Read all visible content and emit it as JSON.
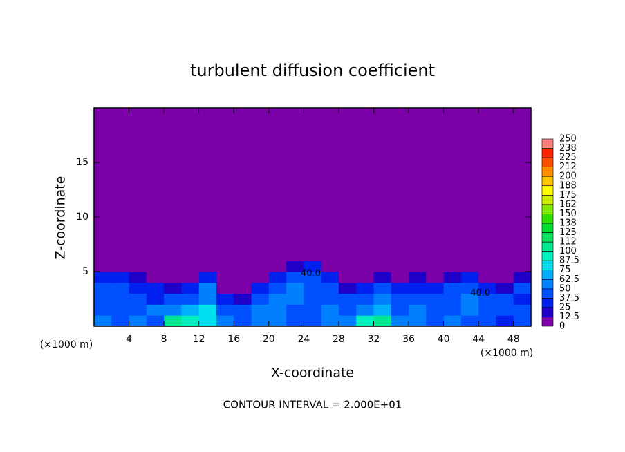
{
  "chart_data": {
    "type": "contour",
    "title": "turbulent diffusion coefficient",
    "x_label": "X-coordinate",
    "y_label": "Z-coordinate",
    "x_unit": "(×1000 m)",
    "y_unit": "(×1000 m)",
    "footnote": "CONTOUR INTERVAL = 2.000E+01",
    "xlim": [
      0,
      50
    ],
    "ylim": [
      0,
      20
    ],
    "xticks": [
      4,
      8,
      12,
      16,
      20,
      24,
      28,
      32,
      36,
      40,
      44,
      48
    ],
    "yticks": [
      5,
      10,
      15
    ],
    "x_bins": [
      0,
      2,
      4,
      6,
      8,
      10,
      12,
      14,
      16,
      18,
      20,
      22,
      24,
      26,
      28,
      30,
      32,
      34,
      36,
      38,
      40,
      42,
      44,
      46,
      48,
      50
    ],
    "z_bins": [
      0,
      1,
      2,
      3,
      4,
      5,
      6,
      20
    ],
    "values": [
      [
        50,
        45,
        50,
        40,
        100,
        90,
        75,
        60,
        45,
        50,
        55,
        45,
        40,
        50,
        60,
        90,
        110,
        60,
        55,
        45,
        50,
        45,
        40,
        35,
        45
      ],
      [
        45,
        40,
        45,
        50,
        60,
        70,
        80,
        40,
        40,
        55,
        50,
        45,
        45,
        50,
        40,
        60,
        70,
        45,
        50,
        40,
        45,
        50,
        40,
        45,
        40
      ],
      [
        40,
        45,
        40,
        35,
        40,
        45,
        60,
        30,
        20,
        45,
        50,
        50,
        45,
        45,
        40,
        45,
        55,
        40,
        45,
        45,
        40,
        50,
        45,
        40,
        35
      ],
      [
        45,
        40,
        35,
        30,
        20,
        30,
        55,
        0,
        0,
        25,
        45,
        50,
        45,
        40,
        20,
        35,
        45,
        30,
        35,
        30,
        40,
        40,
        30,
        20,
        40
      ],
      [
        30,
        25,
        20,
        0,
        0,
        0,
        25,
        0,
        0,
        0,
        25,
        45,
        45,
        35,
        0,
        0,
        20,
        0,
        20,
        0,
        20,
        25,
        0,
        0,
        20
      ],
      [
        0,
        0,
        0,
        0,
        0,
        0,
        0,
        0,
        0,
        0,
        0,
        20,
        25,
        0,
        0,
        0,
        0,
        0,
        0,
        0,
        0,
        0,
        0,
        0,
        0
      ],
      [
        0,
        0,
        0,
        0,
        0,
        0,
        0,
        0,
        0,
        0,
        0,
        0,
        0,
        0,
        0,
        0,
        0,
        0,
        0,
        0,
        0,
        0,
        0,
        0,
        0
      ]
    ],
    "annotations": [
      {
        "text": "40.0",
        "x": 24.8,
        "y": 4.8
      },
      {
        "text": "40.0",
        "x": 44.2,
        "y": 3.0
      }
    ],
    "colorbar": {
      "levels": [
        0,
        12.5,
        25,
        37.5,
        50,
        62.5,
        75,
        87.5,
        100,
        112,
        125,
        138,
        150,
        162,
        175,
        188,
        200,
        212,
        225,
        238,
        250
      ],
      "colors": [
        "#7b00a8",
        "#1e00c8",
        "#0020f0",
        "#0050ff",
        "#0080ff",
        "#00b0ff",
        "#00e0f0",
        "#00f0c0",
        "#00e890",
        "#00e860",
        "#00e030",
        "#30e000",
        "#80e800",
        "#d0f000",
        "#ffff00",
        "#ffc800",
        "#ff9000",
        "#ff5000",
        "#ff2000",
        "#ff8080"
      ]
    }
  }
}
